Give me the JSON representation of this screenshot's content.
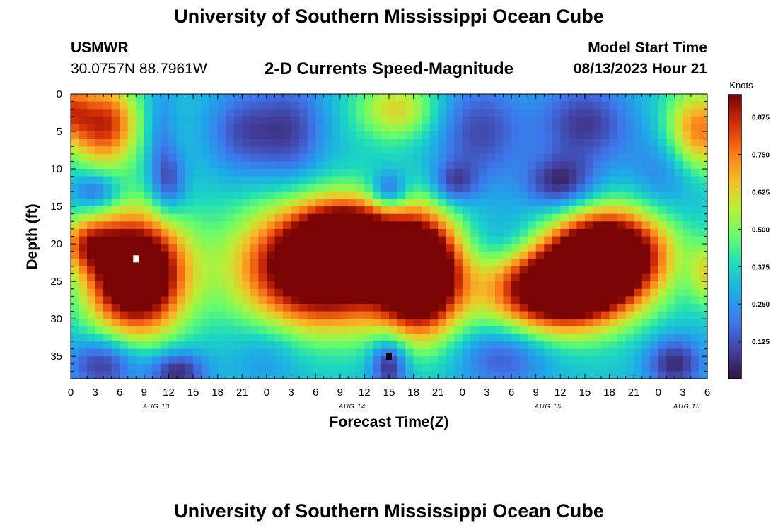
{
  "header": {
    "title": "University of Southern Mississippi Ocean Cube",
    "station_name": "USMWR",
    "station_coords": "30.0757N  88.7961W",
    "subtitle": "2-D Currents Speed-Magnitude",
    "model_start_label": "Model Start Time",
    "model_start_value": "08/13/2023 Hour 21"
  },
  "footer": {
    "title": "University of Southern Mississippi Ocean Cube"
  },
  "chart_data": {
    "type": "heatmap",
    "title": "2-D Currents Speed-Magnitude",
    "xlabel": "Forecast Time(Z)",
    "ylabel": "Depth (ft)",
    "x_unit": "hours since Aug 13 00Z",
    "xlim": [
      0,
      78
    ],
    "ylim": [
      0,
      38
    ],
    "y_inverted": true,
    "x_ticks": [
      {
        "v": 0,
        "label": "0"
      },
      {
        "v": 3,
        "label": "3"
      },
      {
        "v": 6,
        "label": "6"
      },
      {
        "v": 9,
        "label": "9"
      },
      {
        "v": 12,
        "label": "12"
      },
      {
        "v": 15,
        "label": "15"
      },
      {
        "v": 18,
        "label": "18"
      },
      {
        "v": 21,
        "label": "21"
      },
      {
        "v": 24,
        "label": "0"
      },
      {
        "v": 27,
        "label": "3"
      },
      {
        "v": 30,
        "label": "6"
      },
      {
        "v": 33,
        "label": "9"
      },
      {
        "v": 36,
        "label": "12"
      },
      {
        "v": 39,
        "label": "15"
      },
      {
        "v": 42,
        "label": "18"
      },
      {
        "v": 45,
        "label": "21"
      },
      {
        "v": 48,
        "label": "0"
      },
      {
        "v": 51,
        "label": "3"
      },
      {
        "v": 54,
        "label": "6"
      },
      {
        "v": 57,
        "label": "9"
      },
      {
        "v": 60,
        "label": "12"
      },
      {
        "v": 63,
        "label": "15"
      },
      {
        "v": 66,
        "label": "18"
      },
      {
        "v": 69,
        "label": "21"
      },
      {
        "v": 72,
        "label": "0"
      },
      {
        "v": 75,
        "label": "3"
      },
      {
        "v": 78,
        "label": "6"
      }
    ],
    "y_ticks": [
      0,
      5,
      10,
      15,
      20,
      25,
      30,
      35
    ],
    "day_labels": [
      {
        "v": 10.5,
        "label": "AUG 13"
      },
      {
        "v": 34.5,
        "label": "AUG 14"
      },
      {
        "v": 58.5,
        "label": "AUG 15"
      },
      {
        "v": 75.5,
        "label": "AUG 16"
      }
    ],
    "colorbar": {
      "label": "Knots",
      "range": [
        0,
        0.95
      ],
      "ticks": [
        0.125,
        0.25,
        0.375,
        0.5,
        0.625,
        0.75,
        0.875
      ],
      "tick_labels": [
        "0.125",
        "0.250",
        "0.375",
        "0.500",
        "0.625",
        "0.750",
        "0.875"
      ]
    },
    "field": {
      "background": 0.33,
      "features": [
        {
          "t": 4,
          "d": 4,
          "st": 3,
          "sd": 4,
          "a": 0.55
        },
        {
          "t": 0,
          "d": 2,
          "st": 1.5,
          "sd": 3,
          "a": 0.3
        },
        {
          "t": 8,
          "d": 24,
          "st": 4.2,
          "sd": 5.5,
          "a": 0.95
        },
        {
          "t": 2,
          "d": 20,
          "st": 2.5,
          "sd": 2.5,
          "a": 0.35
        },
        {
          "t": 31,
          "d": 23,
          "st": 7,
          "sd": 5.5,
          "a": 0.95
        },
        {
          "t": 34,
          "d": 18,
          "st": 4,
          "sd": 3,
          "a": 0.35
        },
        {
          "t": 43,
          "d": 24,
          "st": 3.5,
          "sd": 5.5,
          "a": 0.9
        },
        {
          "t": 40,
          "d": 2,
          "st": 3.5,
          "sd": 3,
          "a": 0.3
        },
        {
          "t": 60,
          "d": 26,
          "st": 6,
          "sd": 4,
          "a": 0.9
        },
        {
          "t": 66,
          "d": 21,
          "st": 5,
          "sd": 4,
          "a": 0.85
        },
        {
          "t": 77,
          "d": 5,
          "st": 3,
          "sd": 4,
          "a": 0.45
        },
        {
          "t": 78,
          "d": 24,
          "st": 1.5,
          "sd": 3,
          "a": 0.25
        },
        {
          "t": 3,
          "d": 13,
          "st": 2,
          "sd": 1.8,
          "a": -0.22
        },
        {
          "t": 12,
          "d": 12,
          "st": 1.5,
          "sd": 3,
          "a": -0.22
        },
        {
          "t": 11,
          "d": 5,
          "st": 1.3,
          "sd": 5,
          "a": -0.12
        },
        {
          "t": 21,
          "d": 5,
          "st": 3,
          "sd": 4,
          "a": -0.2
        },
        {
          "t": 27,
          "d": 5,
          "st": 3,
          "sd": 5,
          "a": -0.22
        },
        {
          "t": 39,
          "d": 13,
          "st": 1.6,
          "sd": 1.8,
          "a": -0.28
        },
        {
          "t": 47,
          "d": 12,
          "st": 2,
          "sd": 2,
          "a": -0.22
        },
        {
          "t": 50,
          "d": 5,
          "st": 4,
          "sd": 5,
          "a": -0.22
        },
        {
          "t": 60,
          "d": 12,
          "st": 3,
          "sd": 2.5,
          "a": -0.28
        },
        {
          "t": 63,
          "d": 4,
          "st": 4,
          "sd": 4,
          "a": -0.25
        },
        {
          "t": 73,
          "d": 10,
          "st": 3,
          "sd": 4,
          "a": -0.15
        },
        {
          "t": 4,
          "d": 36,
          "st": 3,
          "sd": 2.5,
          "a": -0.28
        },
        {
          "t": 13,
          "d": 37,
          "st": 2.5,
          "sd": 2,
          "a": -0.3
        },
        {
          "t": 39,
          "d": 36,
          "st": 1.6,
          "sd": 2.5,
          "a": -0.32
        },
        {
          "t": 53,
          "d": 35,
          "st": 4,
          "sd": 3,
          "a": -0.2
        },
        {
          "t": 74,
          "d": 36,
          "st": 2.5,
          "sd": 2.5,
          "a": -0.28
        },
        {
          "t": 24,
          "d": 35,
          "st": 3,
          "sd": 3,
          "a": -0.1
        },
        {
          "t": 54,
          "d": 20,
          "st": 4,
          "sd": 3,
          "a": -0.12
        }
      ],
      "markers": [
        {
          "t": 8,
          "d": 22,
          "color": "#ffffff"
        },
        {
          "t": 39,
          "d": 35,
          "color": "#000000"
        }
      ]
    }
  }
}
